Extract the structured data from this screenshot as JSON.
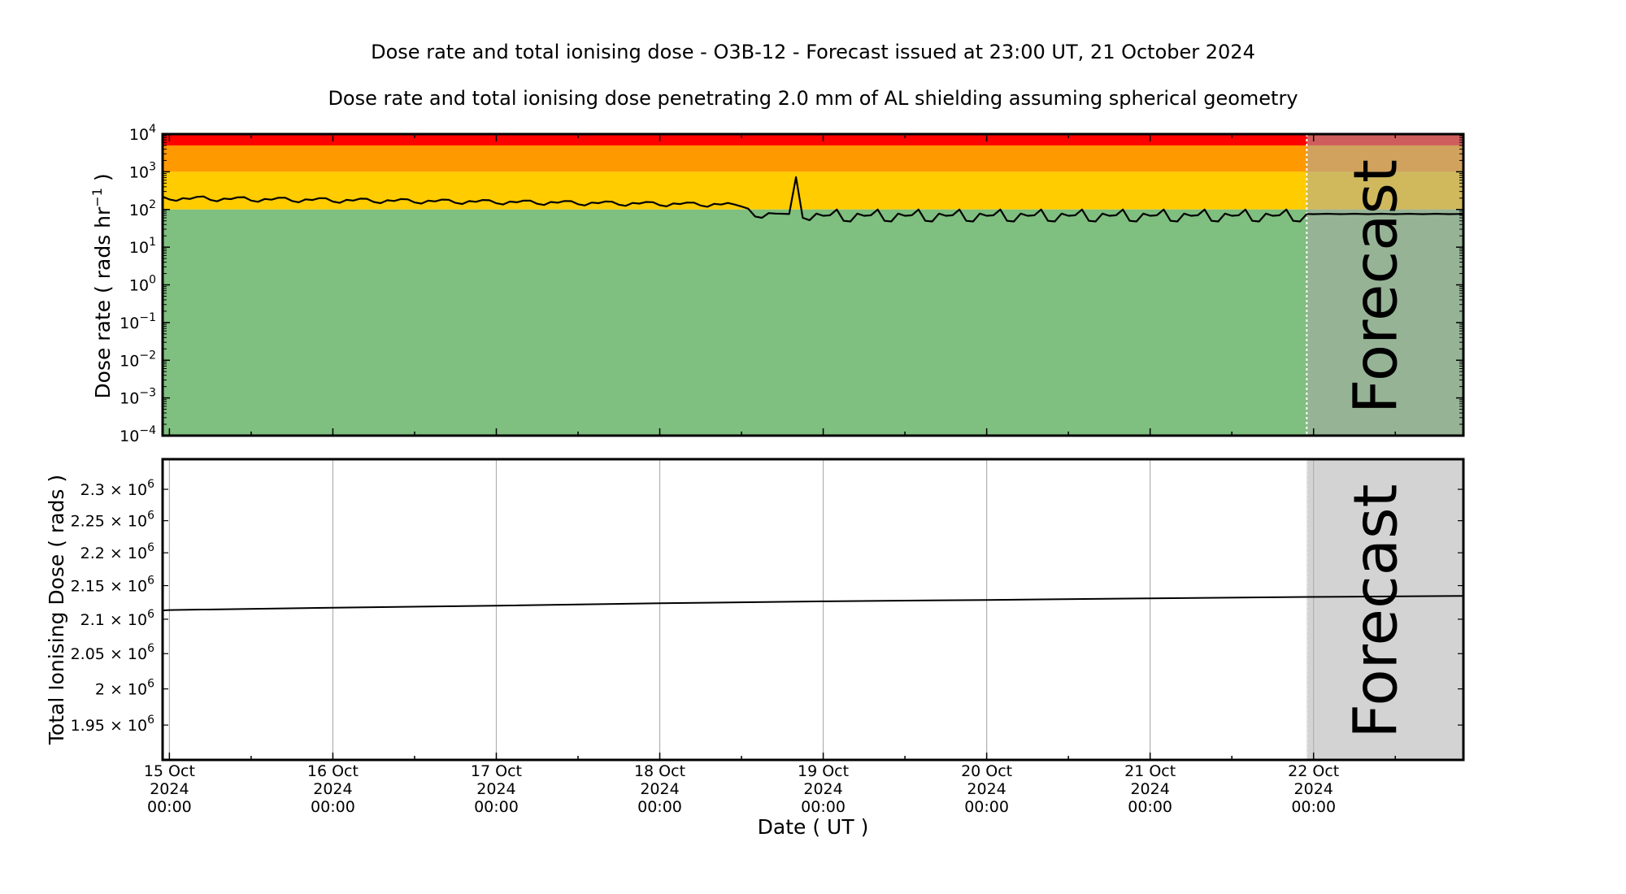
{
  "chart_data": [
    {
      "type": "line",
      "title": "Dose rate and total ionising dose - O3B-12 - Forecast issued at 23:00 UT, 21 October 2024",
      "subtitle": "Dose rate and total ionising dose penetrating 2.0 mm of AL shielding assuming spherical geometry",
      "ylabel": "Dose rate ( rads hr",
      "ylabel_sup": "−1",
      "ylabel_end": " )",
      "yscale": "log",
      "ylim": [
        0.0001,
        10000
      ],
      "ytick_exponents": [
        "4",
        "3",
        "2",
        "1",
        "0",
        "−1",
        "−2",
        "−3",
        "−4"
      ],
      "xlim": [
        "2024-10-14 23:00",
        "2024-10-22 22:00"
      ],
      "forecast_start": "2024-10-21 23:00",
      "forecast_label": "Forecast",
      "bands": [
        {
          "from": 5000,
          "to": 10000,
          "color": "#ff0000"
        },
        {
          "from": 1000,
          "to": 5000,
          "color": "#ff9900"
        },
        {
          "from": 100,
          "to": 1000,
          "color": "#ffcc00"
        },
        {
          "from": 0.0001,
          "to": 100,
          "color": "#7fbf7f"
        }
      ],
      "series": [
        {
          "role": "observed",
          "x_start": "2024-10-14 23:00",
          "x_step_hours": 1,
          "values": [
            220,
            185,
            170,
            200,
            190,
            215,
            222,
            180,
            165,
            195,
            188,
            210,
            212,
            172,
            160,
            190,
            182,
            205,
            205,
            168,
            155,
            186,
            178,
            200,
            198,
            162,
            150,
            180,
            172,
            194,
            192,
            158,
            147,
            176,
            168,
            189,
            186,
            154,
            143,
            171,
            164,
            183,
            181,
            150,
            140,
            167,
            160,
            178,
            176,
            146,
            136,
            162,
            155,
            172,
            171,
            142,
            132,
            158,
            151,
            168,
            166,
            138,
            128,
            153,
            147,
            163,
            161,
            134,
            125,
            149,
            143,
            158,
            156,
            130,
            121,
            145,
            139,
            153,
            152,
            127,
            118,
            141,
            135,
            149,
            135,
            120,
            105,
            65,
            60,
            80,
            78,
            77,
            76,
            720,
            60,
            52,
            78,
            68,
            70,
            100,
            50,
            48,
            78,
            68,
            70,
            100,
            50,
            48,
            78,
            68,
            70,
            100,
            50,
            48,
            78,
            68,
            70,
            100,
            50,
            48,
            78,
            68,
            70,
            100,
            50,
            48,
            78,
            68,
            70,
            100,
            50,
            48,
            78,
            68,
            70,
            100,
            50,
            48,
            78,
            68,
            70,
            100,
            50,
            48,
            78,
            68,
            70,
            100,
            50,
            48,
            78,
            68,
            70,
            100,
            50,
            48,
            78,
            68,
            70,
            100,
            50,
            48,
            78,
            68,
            70,
            100,
            50,
            48,
            76
          ],
          "color": "#000000"
        },
        {
          "role": "forecast",
          "x_start": "2024-10-21 23:00",
          "x_step_hours": 1,
          "values": [
            76,
            75,
            76,
            77,
            76,
            75,
            76,
            77,
            76,
            75,
            76,
            77,
            76,
            75,
            76,
            77,
            76,
            75,
            76,
            77,
            76,
            75,
            76,
            76
          ],
          "color": "#000000"
        }
      ]
    },
    {
      "type": "line",
      "ylabel": "Total Ionising Dose ( rads )",
      "xlabel": "Date ( UT )",
      "yscale": "log",
      "ylim": [
        1903000,
        2349000
      ],
      "yticks": [
        {
          "mant": "2.3",
          "value": 2300000
        },
        {
          "mant": "2.25",
          "value": 2250000
        },
        {
          "mant": "2.2",
          "value": 2200000
        },
        {
          "mant": "2.15",
          "value": 2150000
        },
        {
          "mant": "2.1",
          "value": 2100000
        },
        {
          "mant": "2.05",
          "value": 2050000
        },
        {
          "mant": "2",
          "value": 2000000
        },
        {
          "mant": "1.95",
          "value": 1950000
        }
      ],
      "ytick_times": "×",
      "ytick_base": "10",
      "ytick_exp": "6",
      "xticks": [
        {
          "day": "15 Oct",
          "year": "2024",
          "time": "00:00"
        },
        {
          "day": "16 Oct",
          "year": "2024",
          "time": "00:00"
        },
        {
          "day": "17 Oct",
          "year": "2024",
          "time": "00:00"
        },
        {
          "day": "18 Oct",
          "year": "2024",
          "time": "00:00"
        },
        {
          "day": "19 Oct",
          "year": "2024",
          "time": "00:00"
        },
        {
          "day": "20 Oct",
          "year": "2024",
          "time": "00:00"
        },
        {
          "day": "21 Oct",
          "year": "2024",
          "time": "00:00"
        },
        {
          "day": "22 Oct",
          "year": "2024",
          "time": "00:00"
        }
      ],
      "grid": "vertical",
      "forecast_label": "Forecast",
      "forecast_bg": "#d3d3d3",
      "series": [
        {
          "x": [
            "2024-10-14 23:00",
            "2024-10-15 00:00",
            "2024-10-16 00:00",
            "2024-10-17 00:00",
            "2024-10-18 00:00",
            "2024-10-19 00:00",
            "2024-10-20 00:00",
            "2024-10-21 00:00",
            "2024-10-21 23:00",
            "2024-10-22 22:00"
          ],
          "y": [
            2113000,
            2113500,
            2117000,
            2120000,
            2123500,
            2126500,
            2128500,
            2131000,
            2133000,
            2134500
          ],
          "color": "#000000"
        }
      ]
    }
  ]
}
